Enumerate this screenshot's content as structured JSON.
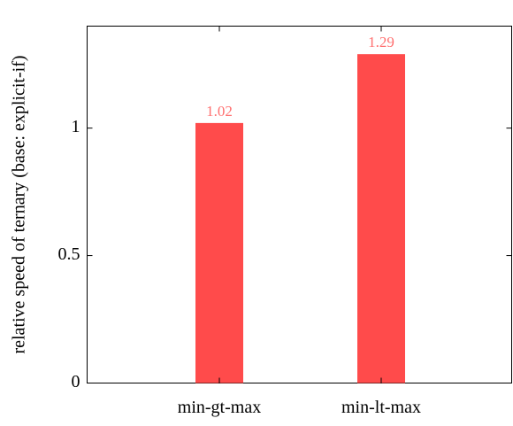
{
  "chart_data": {
    "type": "bar",
    "categories": [
      "min-gt-max",
      "min-lt-max"
    ],
    "values": [
      1.02,
      1.29
    ],
    "data_labels": [
      "1.02",
      "1.29"
    ],
    "title": "",
    "xlabel": "",
    "ylabel": "relative speed of ternary (base: explicit-if)",
    "ylim": [
      0,
      1.4
    ],
    "yticks": [
      0,
      0.5,
      1
    ],
    "ytick_labels": [
      "0",
      "0.5",
      "1"
    ],
    "grid": false,
    "legend": "none",
    "colors": {
      "bar_fill": "#ff4b4b",
      "data_label": "#ff7070",
      "axis": "#000000"
    }
  }
}
